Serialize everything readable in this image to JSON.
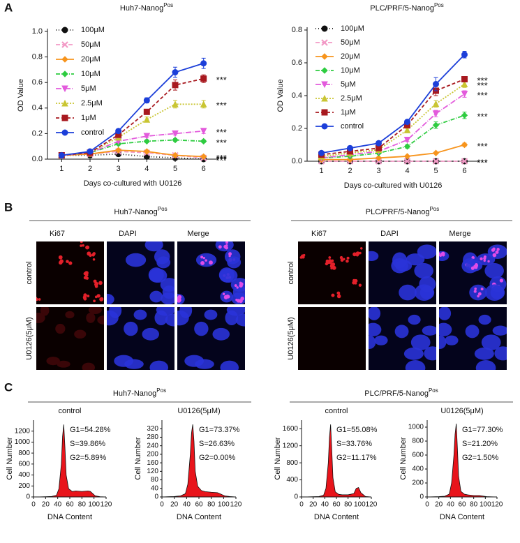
{
  "panels": [
    "A",
    "B",
    "C"
  ],
  "chart_data": [
    {
      "type": "line",
      "title": "Huh7-Nanog",
      "title_sup": "Pos",
      "xlabel": "Days co-cultured with U0126",
      "ylabel": "OD Value",
      "categories": [
        "1",
        "2",
        "3",
        "4",
        "5",
        "6"
      ],
      "ylim": [
        0,
        1.0
      ],
      "yticks": [
        {
          "value": 0,
          "label": "0.0"
        },
        0.2,
        0.4,
        0.6,
        0.8,
        {
          "value": 1.0,
          "label": "1.0"
        }
      ],
      "legend": "upper left",
      "series": [
        {
          "name": "100μM",
          "color": "#111111",
          "marker": "circle",
          "dash": "1,3",
          "values": [
            0.03,
            0.03,
            0.04,
            0.02,
            0.01,
            0.0
          ],
          "errors": [
            0.005,
            0.005,
            0.005,
            0.005,
            0.005,
            0.005
          ],
          "label": "***"
        },
        {
          "name": "50μM",
          "color": "#f29ac6",
          "marker": "x",
          "dash": "6,3",
          "values": [
            0.03,
            0.04,
            0.06,
            0.05,
            0.03,
            0.01
          ],
          "errors": [
            0.005,
            0.005,
            0.01,
            0.01,
            0.005,
            0.005
          ],
          "label": "***"
        },
        {
          "name": "20μM",
          "color": "#f7941d",
          "marker": "diamond",
          "dash": "",
          "values": [
            0.03,
            0.04,
            0.07,
            0.06,
            0.03,
            0.02
          ],
          "errors": [
            0.005,
            0.005,
            0.01,
            0.01,
            0.005,
            0.005
          ],
          "label": "***"
        },
        {
          "name": "10μM",
          "color": "#2ecc40",
          "marker": "diamond",
          "dash": "6,2,1,2",
          "values": [
            0.03,
            0.05,
            0.12,
            0.14,
            0.15,
            0.14
          ],
          "errors": [
            0.005,
            0.005,
            0.01,
            0.01,
            0.01,
            0.01
          ],
          "label": "***"
        },
        {
          "name": "5μM",
          "color": "#e35bdc",
          "marker": "tri-down",
          "dash": "8,2,1,2",
          "values": [
            0.03,
            0.05,
            0.14,
            0.18,
            0.2,
            0.22
          ],
          "errors": [
            0.005,
            0.005,
            0.01,
            0.01,
            0.01,
            0.02
          ],
          "label": "***"
        },
        {
          "name": "2.5μM",
          "color": "#c9c532",
          "marker": "triangle",
          "dash": "2,2",
          "values": [
            0.03,
            0.05,
            0.17,
            0.31,
            0.43,
            0.43
          ],
          "errors": [
            0.005,
            0.005,
            0.01,
            0.02,
            0.03,
            0.03
          ],
          "label": "***"
        },
        {
          "name": "1μM",
          "color": "#a8191f",
          "marker": "square",
          "dash": "5,3",
          "values": [
            0.03,
            0.05,
            0.19,
            0.37,
            0.58,
            0.63
          ],
          "errors": [
            0.005,
            0.005,
            0.01,
            0.02,
            0.04,
            0.03
          ],
          "label": "***"
        },
        {
          "name": "control",
          "color": "#1c3fd9",
          "marker": "circle",
          "dash": "",
          "values": [
            0.03,
            0.06,
            0.22,
            0.46,
            0.68,
            0.75
          ],
          "errors": [
            0.01,
            0.01,
            0.01,
            0.02,
            0.04,
            0.04
          ]
        }
      ]
    },
    {
      "type": "line",
      "title": "PLC/PRF/5-Nanog",
      "title_sup": "Pos",
      "xlabel": "Days co-cultured with U0126",
      "ylabel": "OD Value",
      "categories": [
        "1",
        "2",
        "3",
        "4",
        "5",
        "6"
      ],
      "ylim": [
        0,
        0.8
      ],
      "yticks": [
        {
          "value": 0,
          "label": "0.0"
        },
        0.2,
        0.4,
        0.6,
        0.8
      ],
      "legend": "upper left",
      "series": [
        {
          "name": "100μM",
          "color": "#111111",
          "marker": "circle",
          "dash": "1,3",
          "values": [
            0.0,
            0.0,
            0.0,
            0.0,
            0.0,
            0.0
          ],
          "errors": [
            0.003,
            0.003,
            0.003,
            0.003,
            0.003,
            0.003
          ],
          "label": "***"
        },
        {
          "name": "50μM",
          "color": "#f29ac6",
          "marker": "x",
          "dash": "6,3",
          "values": [
            0.0,
            0.0,
            0.0,
            0.0,
            0.0,
            0.0
          ],
          "errors": [
            0.003,
            0.003,
            0.003,
            0.003,
            0.003,
            0.003
          ],
          "label": "***"
        },
        {
          "name": "20μM",
          "color": "#f7941d",
          "marker": "diamond",
          "dash": "",
          "values": [
            0.01,
            0.01,
            0.02,
            0.03,
            0.05,
            0.1
          ],
          "errors": [
            0.003,
            0.003,
            0.005,
            0.005,
            0.005,
            0.01
          ],
          "label": "***"
        },
        {
          "name": "10μM",
          "color": "#2ecc40",
          "marker": "diamond",
          "dash": "6,2,1,2",
          "values": [
            0.02,
            0.03,
            0.05,
            0.09,
            0.22,
            0.28
          ],
          "errors": [
            0.003,
            0.005,
            0.005,
            0.01,
            0.02,
            0.02
          ],
          "label": "***"
        },
        {
          "name": "5μM",
          "color": "#e35bdc",
          "marker": "tri-down",
          "dash": "8,2,1,2",
          "values": [
            0.02,
            0.04,
            0.06,
            0.13,
            0.29,
            0.41
          ],
          "errors": [
            0.003,
            0.005,
            0.005,
            0.01,
            0.02,
            0.02
          ],
          "label": "***"
        },
        {
          "name": "2.5μM",
          "color": "#c9c532",
          "marker": "triangle",
          "dash": "2,2",
          "values": [
            0.03,
            0.05,
            0.07,
            0.19,
            0.35,
            0.47
          ],
          "errors": [
            0.003,
            0.005,
            0.005,
            0.01,
            0.02,
            0.02
          ],
          "label": "***"
        },
        {
          "name": "1μM",
          "color": "#a8191f",
          "marker": "square",
          "dash": "5,3",
          "values": [
            0.04,
            0.06,
            0.08,
            0.22,
            0.43,
            0.5
          ],
          "errors": [
            0.003,
            0.005,
            0.005,
            0.01,
            0.03,
            0.01
          ],
          "label": "***"
        },
        {
          "name": "control",
          "color": "#1c3fd9",
          "marker": "circle",
          "dash": "",
          "values": [
            0.05,
            0.08,
            0.11,
            0.24,
            0.47,
            0.65
          ],
          "errors": [
            0.005,
            0.005,
            0.01,
            0.01,
            0.04,
            0.02
          ]
        }
      ]
    },
    {
      "type": "histogram",
      "title": "control",
      "xlabel": "DNA Content",
      "ylabel": "Cell Number",
      "color": "#e8141b",
      "stats": [
        "G1=54.28%",
        "S=39.86%",
        "G2=5.89%"
      ],
      "x": [
        0,
        10,
        20,
        30,
        38,
        42,
        46,
        48,
        50,
        52,
        54,
        58,
        64,
        70,
        80,
        90,
        94,
        98,
        102,
        110,
        120
      ],
      "values": [
        0,
        2,
        5,
        10,
        30,
        150,
        600,
        1100,
        1320,
        900,
        400,
        150,
        100,
        110,
        100,
        110,
        100,
        60,
        20,
        5,
        0
      ],
      "xlim": [
        0,
        120
      ],
      "xticks": [
        0,
        20,
        40,
        60,
        80,
        100,
        120
      ],
      "ylim": [
        0,
        1400
      ],
      "yticks": [
        0,
        200,
        400,
        600,
        800,
        1000,
        1200
      ]
    },
    {
      "type": "histogram",
      "title": "U0126(5μM)",
      "xlabel": "DNA Content",
      "ylabel": "Cell Number",
      "color": "#e8141b",
      "stats": [
        "G1=73.37%",
        "S=26.63%",
        "G2=0.00%"
      ],
      "x": [
        0,
        10,
        20,
        30,
        38,
        42,
        46,
        48,
        50,
        52,
        54,
        58,
        64,
        70,
        80,
        90,
        94,
        98,
        102,
        110,
        120
      ],
      "values": [
        0,
        1,
        2,
        5,
        15,
        60,
        200,
        300,
        340,
        260,
        120,
        50,
        30,
        25,
        22,
        20,
        15,
        10,
        5,
        2,
        0
      ],
      "xlim": [
        0,
        120
      ],
      "xticks": [
        0,
        20,
        40,
        60,
        80,
        100,
        120
      ],
      "ylim": [
        0,
        360
      ],
      "yticks": [
        0,
        40,
        80,
        120,
        160,
        200,
        240,
        280,
        320
      ]
    },
    {
      "type": "histogram",
      "title": "control",
      "xlabel": "DNA Content",
      "ylabel": "Cell Number",
      "color": "#e8141b",
      "stats": [
        "G1=55.08%",
        "S=33.76%",
        "G2=11.17%"
      ],
      "x": [
        0,
        10,
        20,
        30,
        38,
        42,
        46,
        48,
        50,
        52,
        54,
        58,
        64,
        70,
        80,
        90,
        94,
        98,
        102,
        110,
        120
      ],
      "values": [
        0,
        2,
        5,
        10,
        40,
        200,
        800,
        1400,
        1700,
        1100,
        450,
        120,
        60,
        50,
        50,
        80,
        200,
        220,
        100,
        10,
        0
      ],
      "xlim": [
        0,
        120
      ],
      "xticks": [
        0,
        20,
        40,
        60,
        80,
        100,
        120
      ],
      "ylim": [
        0,
        1800
      ],
      "yticks": [
        0,
        400,
        800,
        1200,
        1600
      ]
    },
    {
      "type": "histogram",
      "title": "U0126(5μM)",
      "xlabel": "DNA Content",
      "ylabel": "Cell Number",
      "color": "#e8141b",
      "stats": [
        "G1=77.30%",
        "S=21.20%",
        "G2=1.50%"
      ],
      "x": [
        0,
        10,
        20,
        30,
        38,
        42,
        46,
        48,
        50,
        52,
        54,
        58,
        64,
        70,
        80,
        90,
        94,
        98,
        102,
        110,
        120
      ],
      "values": [
        0,
        2,
        5,
        10,
        40,
        200,
        600,
        900,
        1050,
        700,
        300,
        80,
        40,
        30,
        20,
        20,
        15,
        10,
        5,
        2,
        0
      ],
      "xlim": [
        0,
        120
      ],
      "xticks": [
        0,
        20,
        40,
        60,
        80,
        100,
        120
      ],
      "ylim": [
        0,
        1100
      ],
      "yticks": [
        0,
        200,
        400,
        600,
        800,
        1000
      ]
    }
  ],
  "microscopy": [
    {
      "title": "Huh7-Nanog",
      "title_sup": "Pos",
      "columns": [
        "Ki67",
        "DAPI",
        "Merge"
      ],
      "rows": [
        "control",
        "U0126(5μM)"
      ]
    },
    {
      "title": "PLC/PRF/5-Nanog",
      "title_sup": "Pos",
      "columns": [
        "Ki67",
        "DAPI",
        "Merge"
      ],
      "rows": [
        "control",
        "U0126(5μM)"
      ]
    }
  ],
  "flow_groups": [
    {
      "title": "Huh7-Nanog",
      "title_sup": "Pos"
    },
    {
      "title": "PLC/PRF/5-Nanog",
      "title_sup": "Pos"
    }
  ]
}
